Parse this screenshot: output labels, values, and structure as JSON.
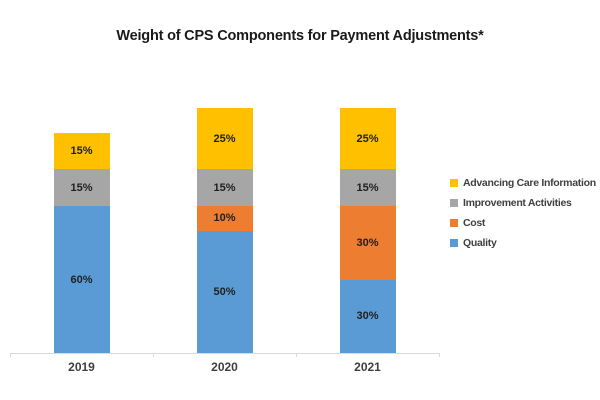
{
  "chart_data": {
    "type": "bar",
    "stacked": true,
    "title": "Weight of CPS Components for Payment Adjustments*",
    "categories": [
      "2019",
      "2020",
      "2021"
    ],
    "series": [
      {
        "name": "Quality",
        "color": "#5B9BD5",
        "values": [
          60,
          50,
          30
        ]
      },
      {
        "name": "Cost",
        "color": "#ED7D31",
        "values": [
          0,
          10,
          30
        ]
      },
      {
        "name": "Improvement Activities",
        "color": "#A6A6A6",
        "values": [
          15,
          15,
          15
        ]
      },
      {
        "name": "Advancing Care Information",
        "color": "#FFC000",
        "values": [
          15,
          25,
          25
        ]
      }
    ],
    "data_label_suffix": "%",
    "legend_position": "right",
    "legend_order_top_to_bottom": [
      "Advancing Care Information",
      "Improvement Activities",
      "Cost",
      "Quality"
    ],
    "ylim": [
      0,
      100
    ],
    "grid": false,
    "axis_color": "#D9D9D9",
    "xlabel": "",
    "ylabel": ""
  }
}
